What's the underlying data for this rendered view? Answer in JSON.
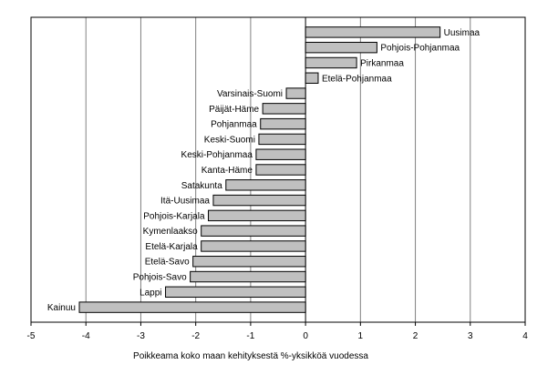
{
  "chart_data": {
    "type": "bar",
    "orientation": "horizontal",
    "title": "",
    "xlabel": "Poikkeama koko maan kehityksestä %-yksikköä vuodessa",
    "ylabel": "",
    "xlim": [
      -5,
      4
    ],
    "xticks": [
      -5,
      -4,
      -3,
      -2,
      -1,
      0,
      1,
      2,
      3,
      4
    ],
    "grid": "vertical",
    "legend": "none",
    "bar_color": "#c0c0c0",
    "categories": [
      "Uusimaa",
      "Pohjois-Pohjanmaa",
      "Pirkanmaa",
      "Etelä-Pohjanmaa",
      "Varsinais-Suomi",
      "Päijät-Häme",
      "Pohjanmaa",
      "Keski-Suomi",
      "Keski-Pohjanmaa",
      "Kanta-Häme",
      "Satakunta",
      "Itä-Uusimaa",
      "Pohjois-Karjala",
      "Kymenlaakso",
      "Etelä-Karjala",
      "Etelä-Savo",
      "Pohjois-Savo",
      "Lappi",
      "Kainuu"
    ],
    "values": [
      2.45,
      1.3,
      0.93,
      0.23,
      -0.35,
      -0.78,
      -0.82,
      -0.85,
      -0.9,
      -0.9,
      -1.45,
      -1.68,
      -1.77,
      -1.9,
      -1.9,
      -2.05,
      -2.1,
      -2.55,
      -4.12
    ]
  }
}
